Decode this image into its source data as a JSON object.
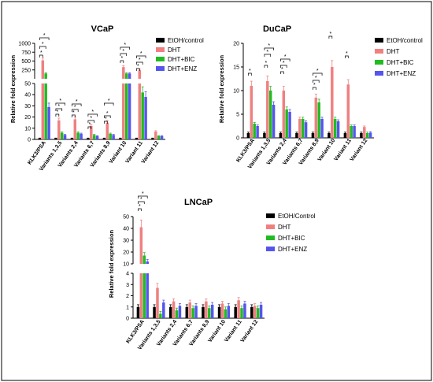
{
  "colors": {
    "EtOH": "#000000",
    "DHT": "#f08080",
    "DHT+BIC": "#22bb22",
    "DHT+ENZ": "#5555ee",
    "frame": "#000000"
  },
  "chart_data": [
    {
      "type": "bar",
      "title": "VCaP",
      "ylabel": "Relative fold expression",
      "y_scale": "segmented",
      "ylim": [
        0,
        1000
      ],
      "y_ticks": [
        0,
        10,
        20,
        30,
        40,
        50,
        250,
        500,
        750,
        1000
      ],
      "categories": [
        "KLK3/PSA",
        "Variants 1,3,5",
        "Variants 2,4",
        "Variants 6,7",
        "Variants 8,9",
        "Variant 10",
        "Variant 11",
        "Variant 12"
      ],
      "legend": [
        "EtOH/control",
        "DHT",
        "DHT+BIC",
        "DHT+ENZ"
      ],
      "legend_position": "right",
      "series": [
        {
          "name": "EtOH/control",
          "values": [
            1,
            1,
            1,
            1,
            1,
            1,
            1,
            1
          ]
        },
        {
          "name": "DHT",
          "values": [
            520,
            17,
            18,
            12,
            15,
            330,
            240,
            7
          ]
        },
        {
          "name": "DHT+BIC",
          "values": [
            150,
            6,
            6,
            4,
            5,
            150,
            42,
            3
          ]
        },
        {
          "name": "DHT+ENZ",
          "values": [
            29,
            4,
            5,
            3,
            4,
            150,
            38,
            3
          ]
        }
      ],
      "significance": [
        "*",
        "*",
        "*",
        "*",
        "*",
        "*",
        "*",
        "*",
        "*",
        "*",
        "*",
        "*",
        "*",
        "*",
        "*",
        "*",
        "*",
        "*",
        "*",
        "*",
        "*",
        "*",
        "*"
      ]
    },
    {
      "type": "bar",
      "title": "DuCaP",
      "ylabel": "Relative fold expression",
      "ylim": [
        0,
        20
      ],
      "y_ticks": [
        0,
        5,
        10,
        15,
        20
      ],
      "categories": [
        "KLK3/PSA",
        "Variants 1,3,5",
        "Variants 2,4",
        "Variants 6,7",
        "Variants 8,9",
        "Variant 10",
        "Variant 11",
        "Variant 12"
      ],
      "legend": [
        "EtOH/control",
        "DHT",
        "DHT+BIC",
        "DHT+ENZ"
      ],
      "legend_position": "right",
      "series": [
        {
          "name": "EtOH/control",
          "values": [
            1,
            1,
            1,
            1,
            1,
            1,
            1,
            1
          ]
        },
        {
          "name": "DHT",
          "values": [
            11,
            12,
            10,
            4,
            8.5,
            15,
            11.3,
            2.3
          ]
        },
        {
          "name": "DHT+BIC",
          "values": [
            3,
            10,
            6,
            4,
            7.5,
            4,
            2.5,
            1
          ]
        },
        {
          "name": "DHT+ENZ",
          "values": [
            2.5,
            7,
            5.5,
            3.3,
            4,
            3.5,
            2.5,
            1.1
          ]
        }
      ],
      "significance": [
        "*",
        "*",
        "*",
        "*",
        "*",
        "*",
        "*",
        "*",
        "*",
        "*",
        "*",
        "*",
        "*",
        "*",
        "*",
        "*"
      ]
    },
    {
      "type": "bar",
      "title": "LNCaP",
      "ylabel": "Relative fold expression",
      "y_scale": "segmented",
      "ylim": [
        0,
        50
      ],
      "y_ticks": [
        0,
        1,
        2,
        3,
        4,
        10,
        20,
        30,
        40,
        50
      ],
      "categories": [
        "KLK3/PSA",
        "Variants 1,3,5",
        "Variants 2,4",
        "Variants 6,7",
        "Variants 8,9",
        "Variant 10",
        "Variant 11",
        "Variant 12"
      ],
      "legend": [
        "EtOH/Control",
        "DHT",
        "DHT+BIC",
        "DHT+ENZ"
      ],
      "legend_position": "right",
      "series": [
        {
          "name": "EtOH/Control",
          "values": [
            1,
            1,
            1,
            1,
            1,
            1,
            1,
            1
          ]
        },
        {
          "name": "DHT",
          "values": [
            41,
            2.7,
            1.5,
            1.4,
            1.5,
            1.3,
            1.6,
            1.1
          ]
        },
        {
          "name": "DHT+BIC",
          "values": [
            17,
            0.4,
            0.7,
            0.9,
            0.9,
            0.8,
            0.9,
            0.9
          ]
        },
        {
          "name": "DHT+ENZ",
          "values": [
            12,
            1.4,
            1.1,
            1.1,
            1.2,
            1.1,
            1.3,
            1.2
          ]
        }
      ],
      "significance": [
        "*",
        "*",
        "*"
      ]
    }
  ]
}
